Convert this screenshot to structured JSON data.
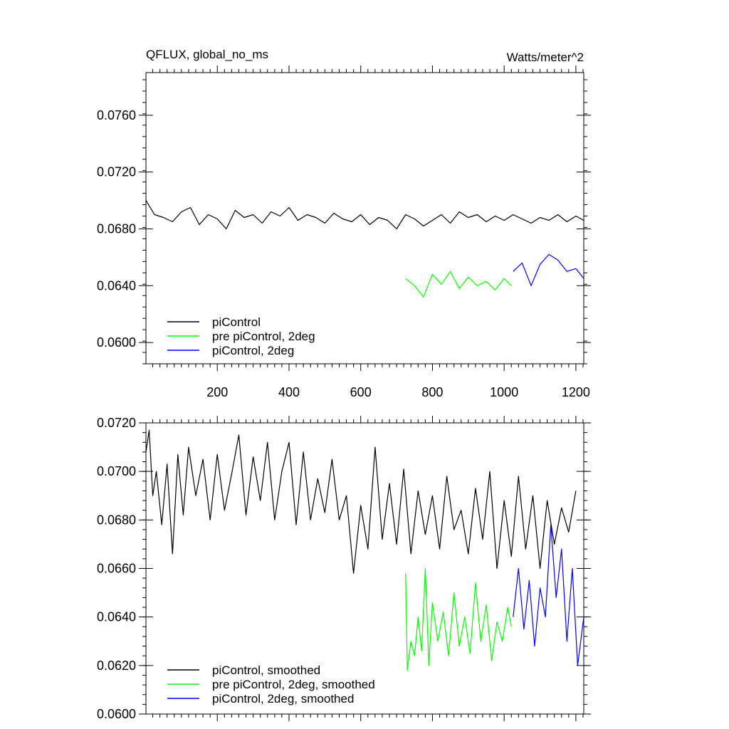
{
  "header": {
    "left_title": "QFLUX, global_no_ms",
    "right_title": "Watts/meter^2"
  },
  "colors": {
    "piControl": "#000000",
    "pre_piControl_2deg": "#00ff00",
    "piControl_2deg": "#0000ff"
  },
  "chart_data": [
    {
      "type": "line",
      "title": "QFLUX, global_no_ms",
      "units": "Watts/meter^2",
      "xlim": [
        1,
        1222
      ],
      "ylim": [
        0.0585,
        0.079
      ],
      "x_ticks": [
        200,
        400,
        600,
        800,
        1000,
        1200
      ],
      "x_tick_labels": [
        "200",
        "400",
        "600",
        "800",
        "1000",
        "1200"
      ],
      "y_ticks": [
        0.06,
        0.064,
        0.068,
        0.072,
        0.076
      ],
      "y_tick_labels": [
        "0.0600",
        "0.0640",
        "0.0680",
        "0.0720",
        "0.0760"
      ],
      "legend_position": "bottom-left",
      "series": [
        {
          "name": "piControl",
          "color": "#000000",
          "x": [
            1,
            25,
            50,
            75,
            100,
            125,
            150,
            175,
            200,
            225,
            250,
            275,
            300,
            325,
            350,
            375,
            400,
            425,
            450,
            475,
            500,
            525,
            550,
            575,
            600,
            625,
            650,
            675,
            700,
            725,
            750,
            775,
            800,
            825,
            850,
            875,
            900,
            925,
            950,
            975,
            1000,
            1025,
            1050,
            1075,
            1100,
            1125,
            1150,
            1175,
            1200,
            1222
          ],
          "y": [
            0.07,
            0.069,
            0.0688,
            0.0685,
            0.0692,
            0.0695,
            0.0683,
            0.069,
            0.0687,
            0.068,
            0.0693,
            0.0688,
            0.069,
            0.0684,
            0.0692,
            0.0689,
            0.0695,
            0.0686,
            0.069,
            0.0688,
            0.0684,
            0.0691,
            0.0687,
            0.0685,
            0.069,
            0.0683,
            0.0688,
            0.0686,
            0.068,
            0.069,
            0.0687,
            0.0682,
            0.0686,
            0.069,
            0.0684,
            0.0692,
            0.0688,
            0.069,
            0.0685,
            0.0689,
            0.0686,
            0.069,
            0.0687,
            0.0684,
            0.0688,
            0.0686,
            0.069,
            0.0685,
            0.0689,
            0.0686
          ]
        },
        {
          "name": "pre piControl, 2deg",
          "color": "#00ff00",
          "x": [
            725,
            750,
            775,
            800,
            825,
            850,
            875,
            900,
            925,
            950,
            975,
            1000,
            1020
          ],
          "y": [
            0.0645,
            0.064,
            0.0632,
            0.0648,
            0.0641,
            0.065,
            0.0638,
            0.0646,
            0.064,
            0.0643,
            0.0637,
            0.0645,
            0.064
          ]
        },
        {
          "name": "piControl, 2deg",
          "color": "#0000ff",
          "x": [
            1025,
            1050,
            1075,
            1100,
            1125,
            1150,
            1175,
            1200,
            1222
          ],
          "y": [
            0.065,
            0.0656,
            0.064,
            0.0655,
            0.0662,
            0.0658,
            0.065,
            0.0652,
            0.0645
          ]
        }
      ]
    },
    {
      "type": "line",
      "xlim": [
        1,
        1222
      ],
      "ylim": [
        0.06,
        0.072
      ],
      "x_ticks": [
        200,
        400,
        600,
        800,
        1000,
        1200
      ],
      "y_ticks": [
        0.06,
        0.062,
        0.064,
        0.066,
        0.068,
        0.07,
        0.072
      ],
      "y_tick_labels": [
        "0.0600",
        "0.0620",
        "0.0640",
        "0.0660",
        "0.0680",
        "0.0700",
        "0.0720"
      ],
      "legend_position": "bottom-left",
      "series": [
        {
          "name": "piControl, smoothed",
          "color": "#000000",
          "x": [
            1,
            10,
            20,
            30,
            45,
            60,
            75,
            90,
            105,
            120,
            140,
            160,
            180,
            200,
            220,
            240,
            260,
            280,
            300,
            320,
            340,
            360,
            380,
            400,
            420,
            440,
            460,
            480,
            500,
            520,
            540,
            560,
            580,
            600,
            620,
            640,
            660,
            680,
            700,
            720,
            740,
            760,
            780,
            800,
            820,
            840,
            860,
            880,
            900,
            920,
            940,
            960,
            980,
            1000,
            1020,
            1040,
            1060,
            1080,
            1100,
            1120,
            1140,
            1160,
            1180,
            1200
          ],
          "y": [
            0.0708,
            0.0717,
            0.069,
            0.07,
            0.0678,
            0.0703,
            0.0666,
            0.0707,
            0.0682,
            0.071,
            0.069,
            0.0705,
            0.068,
            0.0707,
            0.0684,
            0.0699,
            0.0715,
            0.0682,
            0.0706,
            0.0688,
            0.0712,
            0.068,
            0.07,
            0.0712,
            0.0678,
            0.0708,
            0.068,
            0.0697,
            0.0683,
            0.0705,
            0.068,
            0.069,
            0.0658,
            0.0686,
            0.0668,
            0.071,
            0.0672,
            0.0695,
            0.067,
            0.0701,
            0.0666,
            0.0692,
            0.0674,
            0.069,
            0.0668,
            0.0698,
            0.0676,
            0.0684,
            0.0666,
            0.0693,
            0.0672,
            0.07,
            0.066,
            0.0688,
            0.0665,
            0.0698,
            0.0668,
            0.069,
            0.066,
            0.0688,
            0.067,
            0.0685,
            0.0675,
            0.0692
          ]
        },
        {
          "name": "pre piControl, 2deg, smoothed",
          "color": "#00ff00",
          "x": [
            725,
            730,
            740,
            750,
            760,
            770,
            780,
            790,
            800,
            815,
            830,
            845,
            860,
            875,
            890,
            905,
            920,
            935,
            950,
            965,
            980,
            995,
            1010,
            1020
          ],
          "y": [
            0.0658,
            0.0618,
            0.063,
            0.0624,
            0.064,
            0.0626,
            0.066,
            0.062,
            0.0646,
            0.063,
            0.0642,
            0.0624,
            0.065,
            0.0628,
            0.064,
            0.0625,
            0.0654,
            0.063,
            0.0645,
            0.0622,
            0.0638,
            0.063,
            0.0644,
            0.0636
          ]
        },
        {
          "name": "piControl, 2deg, smoothed",
          "color": "#0000ff",
          "x": [
            1025,
            1040,
            1055,
            1070,
            1085,
            1100,
            1115,
            1130,
            1145,
            1160,
            1175,
            1190,
            1205,
            1222
          ],
          "y": [
            0.064,
            0.066,
            0.0635,
            0.0655,
            0.0628,
            0.0652,
            0.064,
            0.0678,
            0.0648,
            0.0668,
            0.063,
            0.066,
            0.062,
            0.064
          ]
        }
      ]
    }
  ]
}
